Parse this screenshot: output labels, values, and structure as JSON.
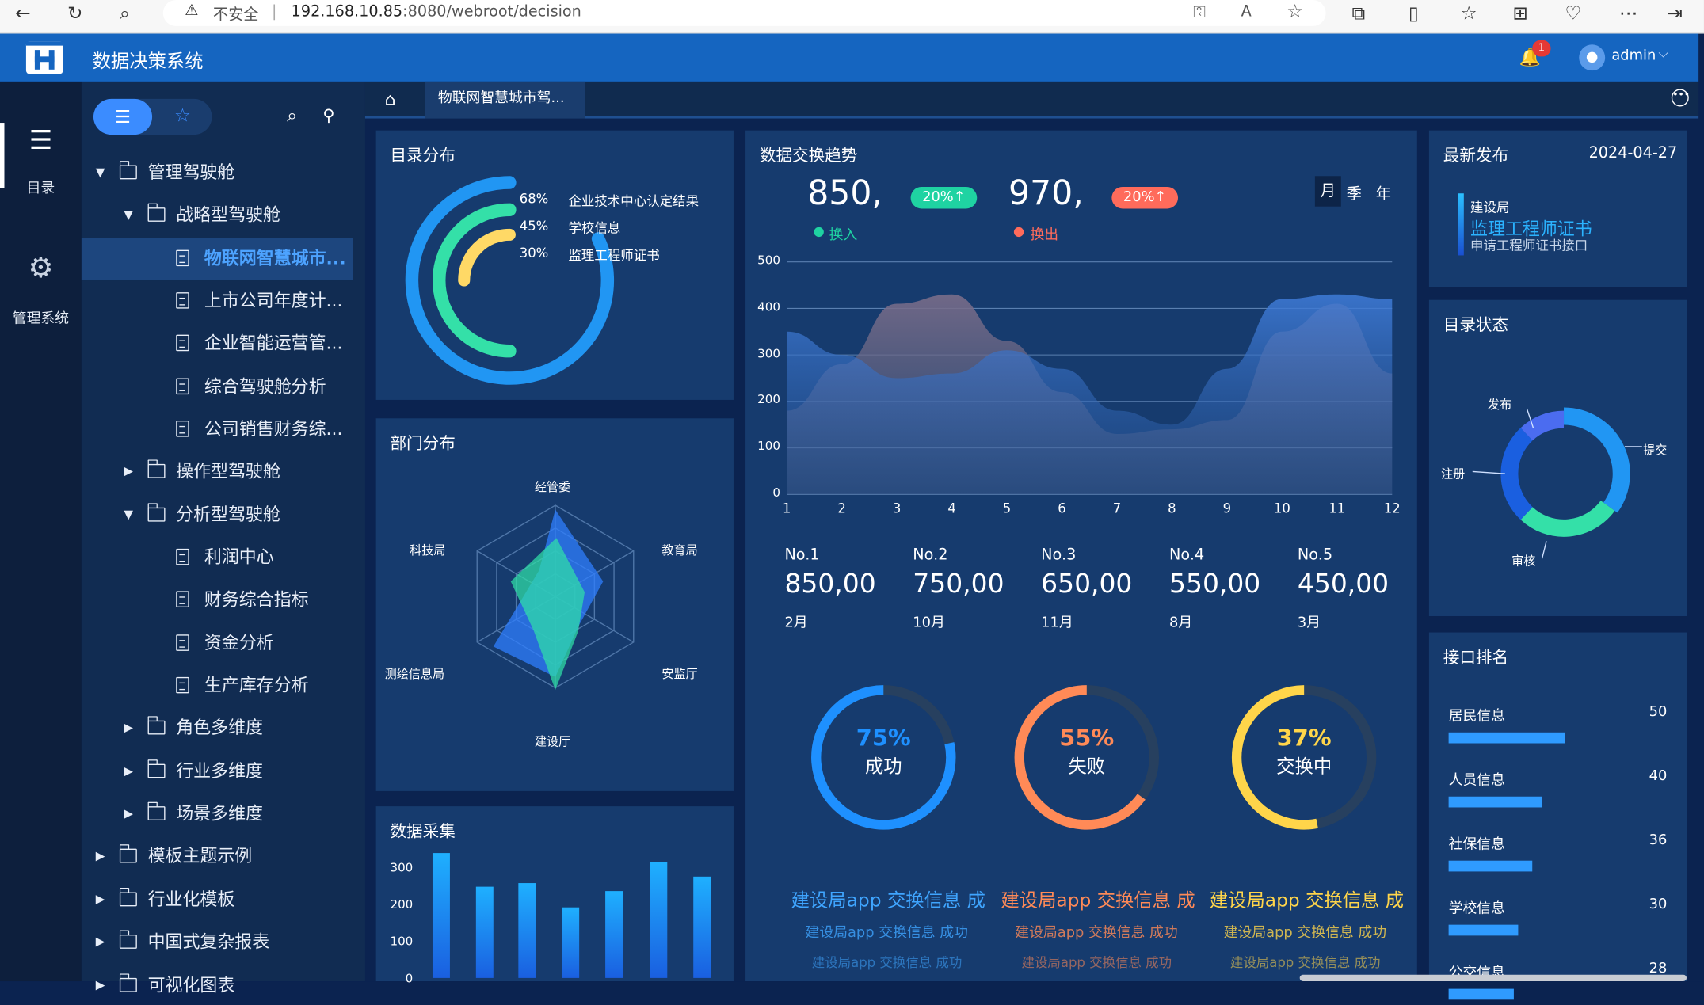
{
  "browser": {
    "security_label": "不安全",
    "separator": "|",
    "url_host": "192.168.10.85",
    "url_rest": ":8080/webroot/decision"
  },
  "app": {
    "title": "数据决策系统",
    "notification_count": "1",
    "user": "admin"
  },
  "rail": {
    "items": [
      {
        "label": "目录",
        "icon": "list-icon"
      },
      {
        "label": "管理系统",
        "icon": "gear-icon"
      }
    ]
  },
  "tree": {
    "nodes": [
      "管理驾驶舱",
      "战略型驾驶舱",
      "物联网智慧城市...",
      "上市公司年度计...",
      "企业智能运营管...",
      "综合驾驶舱分析",
      "公司销售财务综...",
      "操作型驾驶舱",
      "分析型驾驶舱",
      "利润中心",
      "财务综合指标",
      "资金分析",
      "生产库存分析",
      "角色多维度",
      "行业多维度",
      "场景多维度",
      "模板主题示例",
      "行业化模板",
      "中国式复杂报表",
      "可视化图表"
    ]
  },
  "tabs": {
    "active": "物联网智慧城市驾..."
  },
  "catalog": {
    "title": "目录分布",
    "items": [
      {
        "pct": "68%",
        "label": "企业技术中心认定结果",
        "value": 68,
        "color": "#2196f3"
      },
      {
        "pct": "45%",
        "label": "学校信息",
        "value": 45,
        "color": "#34e0a8"
      },
      {
        "pct": "30%",
        "label": "监理工程师证书",
        "value": 30,
        "color": "#ffd966"
      }
    ]
  },
  "dept": {
    "title": "部门分布",
    "labels": [
      "经管委",
      "教育局",
      "安监厅",
      "建设厅",
      "测绘信息局",
      "科技局"
    ]
  },
  "collect": {
    "title": "数据采集",
    "yticks": [
      "300",
      "200",
      "100",
      "0"
    ],
    "values": [
      345,
      252,
      262,
      195,
      240,
      320,
      280
    ]
  },
  "trend": {
    "title": "数据交换趋势",
    "in_value": "850,",
    "in_pill": "20%↑",
    "in_label": "换入",
    "out_value": "970,",
    "out_pill": "20%↑",
    "out_label": "换出",
    "periods": [
      "月",
      "季",
      "年"
    ],
    "yticks": [
      "500",
      "400",
      "300",
      "200",
      "100",
      "0"
    ],
    "xticks": [
      "1",
      "2",
      "3",
      "4",
      "5",
      "6",
      "7",
      "8",
      "9",
      "10",
      "11",
      "12"
    ]
  },
  "chart_data": {
    "type": "area",
    "title": "数据交换趋势",
    "x": [
      1,
      2,
      3,
      4,
      5,
      6,
      7,
      8,
      9,
      10,
      11,
      12
    ],
    "ylim": [
      0,
      500
    ],
    "series": [
      {
        "name": "换入",
        "values": [
          350,
          300,
          250,
          260,
          310,
          270,
          180,
          150,
          270,
          420,
          430,
          420
        ]
      },
      {
        "name": "换出",
        "values": [
          180,
          280,
          410,
          430,
          330,
          220,
          130,
          140,
          160,
          350,
          410,
          260
        ]
      }
    ]
  },
  "ranks": {
    "items": [
      {
        "no": "No.1",
        "value": "850,00",
        "month": "2月"
      },
      {
        "no": "No.2",
        "value": "750,00",
        "month": "10月"
      },
      {
        "no": "No.3",
        "value": "650,00",
        "month": "11月"
      },
      {
        "no": "No.4",
        "value": "550,00",
        "month": "8月"
      },
      {
        "no": "No.5",
        "value": "450,00",
        "month": "3月"
      }
    ]
  },
  "gauges": [
    {
      "pct": "75%",
      "label": "成功",
      "value": 75,
      "color": "#1e90ff"
    },
    {
      "pct": "55%",
      "label": "失败",
      "value": 55,
      "color": "#ff8a57"
    },
    {
      "pct": "37%",
      "label": "交换中",
      "value": 37,
      "color": "#ffd54a"
    }
  ],
  "feeds": [
    {
      "line1": "建设局app 交换信息 成",
      "line2": "建设局app 交换信息 成功",
      "line3": "建设局app 交换信息 成功",
      "color": "#3fa5ff"
    },
    {
      "line1": "建设局app 交换信息 成",
      "line2": "建设局app 交换信息 成功",
      "line3": "建设局app 交换信息 成功",
      "color": "#ff8a57"
    },
    {
      "line1": "建设局app 交换信息 成",
      "line2": "建设局app 交换信息 成功",
      "line3": "建设局app 交换信息 成功",
      "color": "#ffd54a"
    }
  ],
  "latest": {
    "title": "最新发布",
    "date": "2024-04-27",
    "org": "建设局",
    "headline": "监理工程师证书",
    "sub": "申请工程师证书接口"
  },
  "status": {
    "title": "目录状态",
    "labels": [
      "发布",
      "提交",
      "注册",
      "审核"
    ],
    "values": [
      10,
      35,
      30,
      25
    ]
  },
  "api_rank": {
    "title": "接口排名",
    "items": [
      {
        "name": "居民信息",
        "value": "50",
        "v": 50
      },
      {
        "name": "人员信息",
        "value": "40",
        "v": 40
      },
      {
        "name": "社保信息",
        "value": "36",
        "v": 36
      },
      {
        "name": "学校信息",
        "value": "30",
        "v": 30
      },
      {
        "name": "公交信息",
        "value": "28",
        "v": 28
      }
    ]
  },
  "colors": {
    "header": "#1565c0",
    "accent": "#3b8cff",
    "panel": "#163b6e",
    "green": "#1fd3a2",
    "red": "#ff6b5b"
  }
}
